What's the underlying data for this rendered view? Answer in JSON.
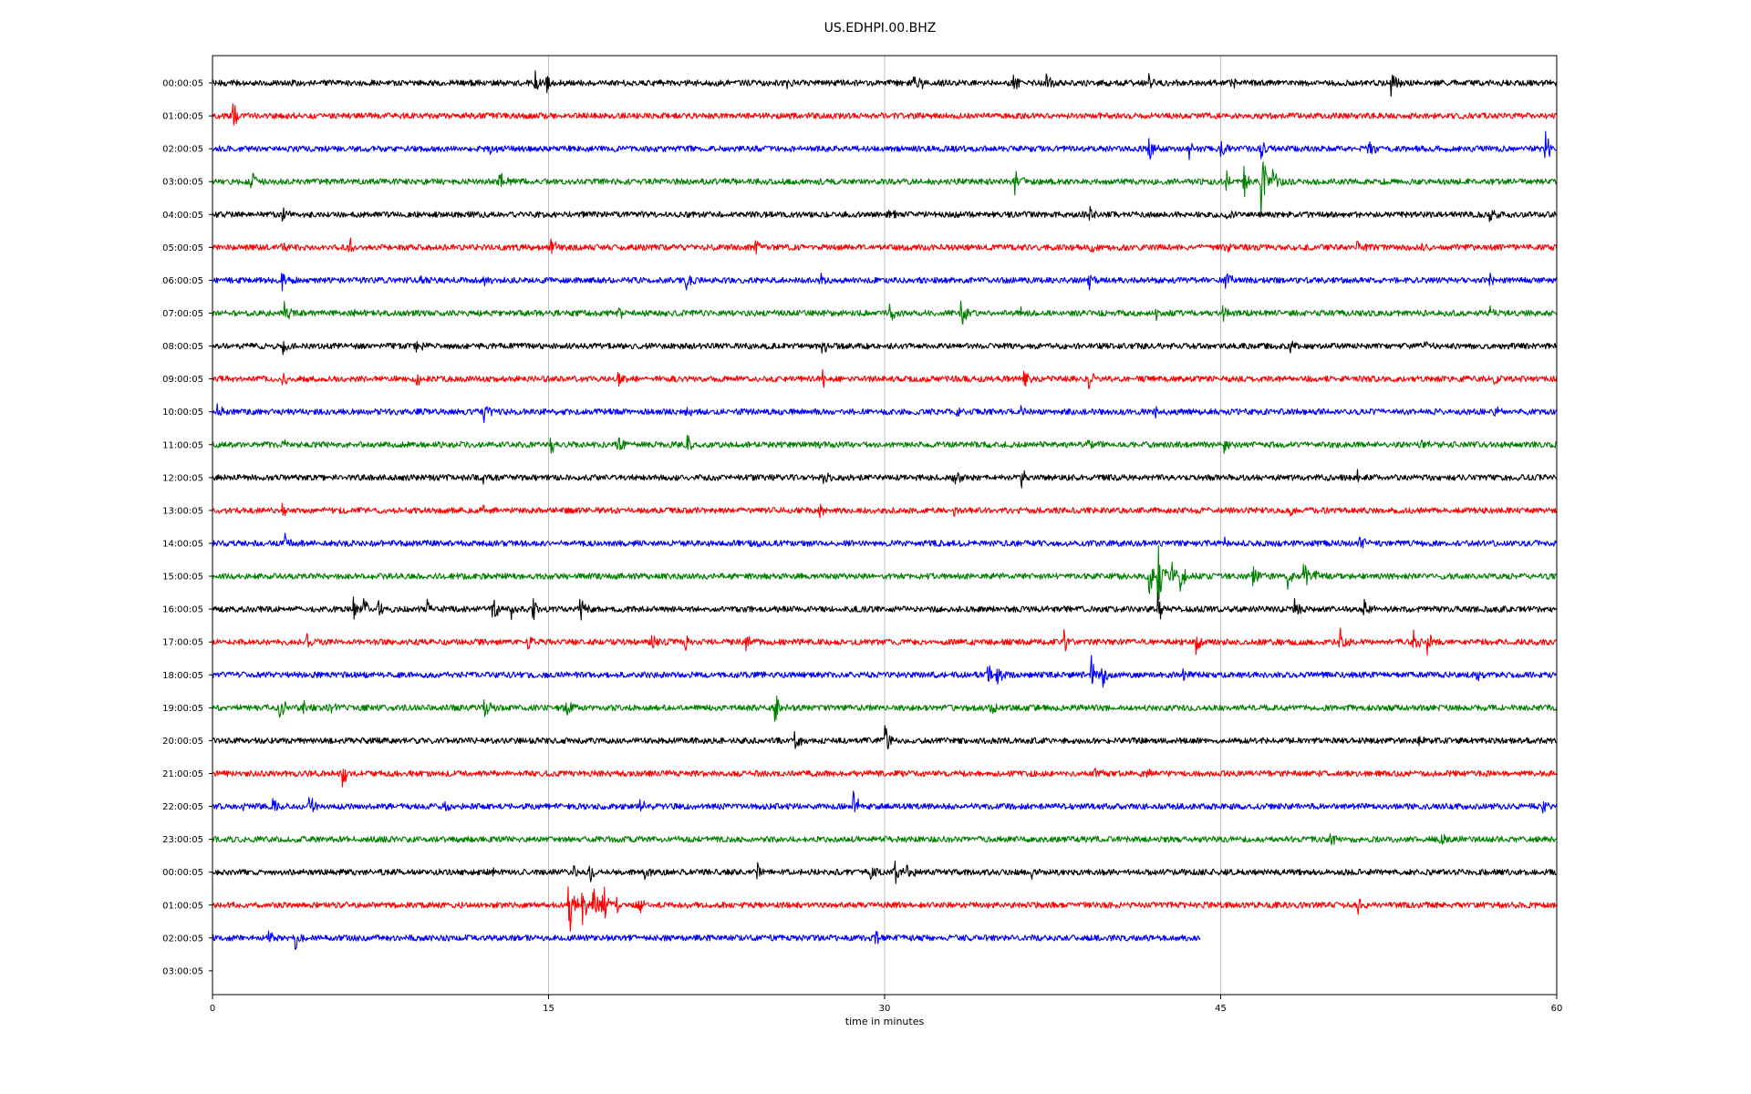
{
  "chart_data": {
    "type": "line",
    "title": "US.EDHPI.00.BHZ",
    "xlabel": "time in minutes",
    "ylabel": "",
    "xlim": [
      0,
      60
    ],
    "x_ticks": [
      "0",
      "15",
      "30",
      "45",
      "60"
    ],
    "x_tick_values": [
      0,
      15,
      30,
      45,
      60
    ],
    "grid": "vertical",
    "legend": "none",
    "colors": [
      "#000000",
      "#ff0000",
      "#0000ff",
      "#008000"
    ],
    "rows": [
      {
        "label": "00:00:05",
        "end": 60,
        "events": [
          [
            14.4,
            0.5
          ],
          [
            14.9,
            0.4
          ],
          [
            25.6,
            0.3
          ],
          [
            31.3,
            1.0
          ],
          [
            35.7,
            0.5
          ],
          [
            37.2,
            0.5
          ],
          [
            41.8,
            0.5
          ],
          [
            45.4,
            0.3
          ],
          [
            52.6,
            0.9
          ]
        ]
      },
      {
        "label": "01:00:05",
        "end": 60,
        "events": [
          [
            0.9,
            0.8
          ]
        ]
      },
      {
        "label": "02:00:05",
        "end": 60,
        "events": [
          [
            12.4,
            0.3
          ],
          [
            41.8,
            0.5
          ],
          [
            43.6,
            0.4
          ],
          [
            45.0,
            0.6
          ],
          [
            46.8,
            0.5
          ],
          [
            51.6,
            0.4
          ],
          [
            59.5,
            0.8
          ]
        ]
      },
      {
        "label": "03:00:05",
        "end": 60,
        "events": [
          [
            1.7,
            0.5
          ],
          [
            12.8,
            0.5
          ],
          [
            35.8,
            0.5
          ],
          [
            45.2,
            0.5
          ],
          [
            46.0,
            0.8
          ],
          [
            46.8,
            1.7
          ],
          [
            47.3,
            0.6
          ]
        ]
      },
      {
        "label": "04:00:05",
        "end": 60,
        "events": [
          [
            3.1,
            0.4
          ],
          [
            30.2,
            0.3
          ],
          [
            39.1,
            0.4
          ],
          [
            45.2,
            0.3
          ],
          [
            57.0,
            0.3
          ]
        ]
      },
      {
        "label": "05:00:05",
        "end": 60,
        "events": [
          [
            3.1,
            0.3
          ],
          [
            6.1,
            0.4
          ],
          [
            15.1,
            0.4
          ],
          [
            24.2,
            0.4
          ],
          [
            39.2,
            0.4
          ],
          [
            45.2,
            0.3
          ],
          [
            51.1,
            0.4
          ],
          [
            54.0,
            0.4
          ]
        ]
      },
      {
        "label": "06:00:05",
        "end": 60,
        "events": [
          [
            3.1,
            0.4
          ],
          [
            9.2,
            0.4
          ],
          [
            12.1,
            0.5
          ],
          [
            21.1,
            0.4
          ],
          [
            27.1,
            0.4
          ],
          [
            39.1,
            0.4
          ],
          [
            45.2,
            0.4
          ],
          [
            57.0,
            0.4
          ]
        ]
      },
      {
        "label": "07:00:05",
        "end": 60,
        "events": [
          [
            3.2,
            0.4
          ],
          [
            6.2,
            0.3
          ],
          [
            18.1,
            0.3
          ],
          [
            30.2,
            0.4
          ],
          [
            33.4,
            0.6
          ],
          [
            36.1,
            0.3
          ],
          [
            42.1,
            0.3
          ],
          [
            45.1,
            0.3
          ],
          [
            57.0,
            0.4
          ]
        ]
      },
      {
        "label": "08:00:05",
        "end": 60,
        "events": [
          [
            3.1,
            0.4
          ],
          [
            9.1,
            0.4
          ],
          [
            27.2,
            0.4
          ],
          [
            48.1,
            0.3
          ],
          [
            54.1,
            0.3
          ]
        ]
      },
      {
        "label": "09:00:05",
        "end": 60,
        "events": [
          [
            3.1,
            0.4
          ],
          [
            9.1,
            0.3
          ],
          [
            18.1,
            0.4
          ],
          [
            27.2,
            0.4
          ],
          [
            36.2,
            0.4
          ],
          [
            39.1,
            0.4
          ],
          [
            57.2,
            0.4
          ]
        ]
      },
      {
        "label": "10:00:05",
        "end": 60,
        "events": [
          [
            0.2,
            0.4
          ],
          [
            12.1,
            0.5
          ],
          [
            21.1,
            0.3
          ],
          [
            33.2,
            0.3
          ],
          [
            36.1,
            0.4
          ],
          [
            42.1,
            0.3
          ],
          [
            57.2,
            0.4
          ]
        ]
      },
      {
        "label": "11:00:05",
        "end": 60,
        "events": [
          [
            3.1,
            0.3
          ],
          [
            15.1,
            0.4
          ],
          [
            18.1,
            0.4
          ],
          [
            21.2,
            0.5
          ],
          [
            27.1,
            0.3
          ],
          [
            39.1,
            0.3
          ],
          [
            45.1,
            0.4
          ],
          [
            54.0,
            0.3
          ]
        ]
      },
      {
        "label": "12:00:05",
        "end": 60,
        "events": [
          [
            3.2,
            0.3
          ],
          [
            12.1,
            0.3
          ],
          [
            27.2,
            0.4
          ],
          [
            33.1,
            0.3
          ],
          [
            36.1,
            0.4
          ],
          [
            51.1,
            0.3
          ]
        ]
      },
      {
        "label": "13:00:05",
        "end": 60,
        "events": [
          [
            3.1,
            0.3
          ],
          [
            12.1,
            0.3
          ],
          [
            27.1,
            0.3
          ],
          [
            33.1,
            0.3
          ],
          [
            48.1,
            0.3
          ]
        ]
      },
      {
        "label": "14:00:05",
        "end": 60,
        "events": [
          [
            3.2,
            0.4
          ],
          [
            24.1,
            0.3
          ],
          [
            45.1,
            0.3
          ],
          [
            51.2,
            0.3
          ]
        ]
      },
      {
        "label": "15:00:05",
        "end": 60,
        "events": [
          [
            41.8,
            0.8
          ],
          [
            42.2,
            1.6
          ],
          [
            42.8,
            0.7
          ],
          [
            43.2,
            0.6
          ],
          [
            46.4,
            0.5
          ],
          [
            48.0,
            0.6
          ],
          [
            48.7,
            0.7
          ],
          [
            49.2,
            0.5
          ]
        ]
      },
      {
        "label": "16:00:05",
        "end": 60,
        "events": [
          [
            6.3,
            0.6
          ],
          [
            6.7,
            0.7
          ],
          [
            7.4,
            0.5
          ],
          [
            9.6,
            0.4
          ],
          [
            12.5,
            0.8
          ],
          [
            13.3,
            0.5
          ],
          [
            14.3,
            0.6
          ],
          [
            16.4,
            0.6
          ],
          [
            42.2,
            0.8
          ],
          [
            48.3,
            0.5
          ],
          [
            51.4,
            0.5
          ]
        ]
      },
      {
        "label": "17:00:05",
        "end": 60,
        "events": [
          [
            4.2,
            0.4
          ],
          [
            14.1,
            0.5
          ],
          [
            19.6,
            0.4
          ],
          [
            21.1,
            0.5
          ],
          [
            23.8,
            0.6
          ],
          [
            38.0,
            0.5
          ],
          [
            43.9,
            0.5
          ],
          [
            50.3,
            0.6
          ],
          [
            53.6,
            0.6
          ],
          [
            54.2,
            0.5
          ]
        ]
      },
      {
        "label": "18:00:05",
        "end": 60,
        "events": [
          [
            34.6,
            0.5
          ],
          [
            35.0,
            0.6
          ],
          [
            39.2,
            0.9
          ],
          [
            39.7,
            0.6
          ],
          [
            43.3,
            0.6
          ],
          [
            56.4,
            0.4
          ]
        ]
      },
      {
        "label": "19:00:05",
        "end": 60,
        "events": [
          [
            3.0,
            0.9
          ],
          [
            4.0,
            0.5
          ],
          [
            5.1,
            0.5
          ],
          [
            12.1,
            0.6
          ],
          [
            15.7,
            0.6
          ],
          [
            25.1,
            0.8
          ],
          [
            34.6,
            0.6
          ]
        ]
      },
      {
        "label": "20:00:05",
        "end": 60,
        "events": [
          [
            26.0,
            0.5
          ],
          [
            30.0,
            0.8
          ],
          [
            53.8,
            0.3
          ]
        ]
      },
      {
        "label": "21:00:05",
        "end": 60,
        "events": [
          [
            5.8,
            0.6
          ],
          [
            39.4,
            0.3
          ],
          [
            41.7,
            0.3
          ]
        ]
      },
      {
        "label": "22:00:05",
        "end": 60,
        "events": [
          [
            1.2,
            0.3
          ],
          [
            2.7,
            0.4
          ],
          [
            4.3,
            0.5
          ],
          [
            10.3,
            0.5
          ],
          [
            19.1,
            0.4
          ],
          [
            28.6,
            0.7
          ],
          [
            59.4,
            0.3
          ]
        ]
      },
      {
        "label": "23:00:05",
        "end": 60,
        "events": [
          [
            49.9,
            0.4
          ],
          [
            54.8,
            0.4
          ]
        ]
      },
      {
        "label": "00:00:05",
        "end": 60,
        "events": [
          [
            12.5,
            0.3
          ],
          [
            16.1,
            0.5
          ],
          [
            16.8,
            0.5
          ],
          [
            19.2,
            0.4
          ],
          [
            24.3,
            0.4
          ],
          [
            29.3,
            0.4
          ],
          [
            30.4,
            0.7
          ],
          [
            31.0,
            0.5
          ],
          [
            36.5,
            0.3
          ]
        ]
      },
      {
        "label": "01:00:05",
        "end": 60,
        "events": [
          [
            15.9,
            1.4
          ],
          [
            16.5,
            0.8
          ],
          [
            17.0,
            0.9
          ],
          [
            17.4,
            1.2
          ],
          [
            18.0,
            0.5
          ],
          [
            19.0,
            0.4
          ],
          [
            51.1,
            0.4
          ]
        ]
      },
      {
        "label": "02:00:05",
        "end": 44.1,
        "events": [
          [
            2.5,
            0.4
          ],
          [
            3.7,
            0.5
          ],
          [
            29.6,
            0.3
          ]
        ]
      },
      {
        "label": "03:00:05",
        "end": 0,
        "events": []
      }
    ]
  }
}
